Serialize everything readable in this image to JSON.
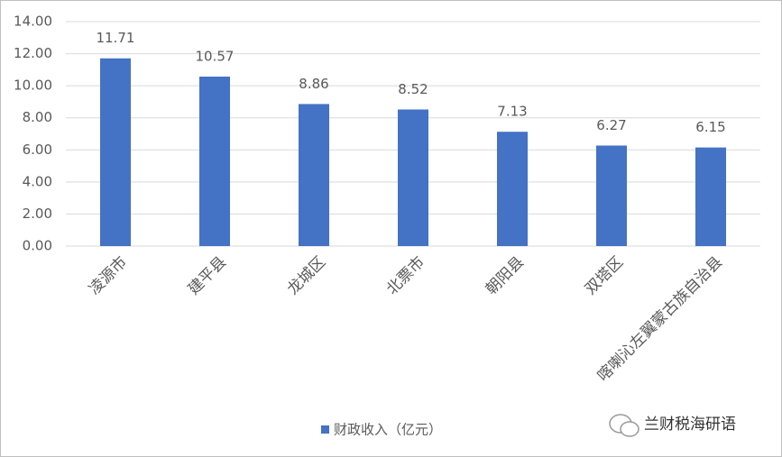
{
  "chart_data": {
    "type": "bar",
    "categories": [
      "凌源市",
      "建平县",
      "龙城区",
      "北票市",
      "朝阳县",
      "双塔区",
      "喀喇沁左翼蒙古族自治县"
    ],
    "series": [
      {
        "name": "财政收入（亿元）",
        "color": "#4472c4",
        "values": [
          11.71,
          10.57,
          8.86,
          8.52,
          7.13,
          6.27,
          6.15
        ]
      }
    ],
    "ylim": [
      0,
      14
    ],
    "yticks": [
      {
        "value": 0,
        "label": "0.00"
      },
      {
        "value": 2,
        "label": "2.00"
      },
      {
        "value": 4,
        "label": "4.00"
      },
      {
        "value": 6,
        "label": "6.00"
      },
      {
        "value": 8,
        "label": "8.00"
      },
      {
        "value": 10,
        "label": "10.00"
      },
      {
        "value": 12,
        "label": "12.00"
      },
      {
        "value": 14,
        "label": "14.00"
      }
    ],
    "grid": true,
    "legend": "bottom",
    "annotation": "兰财税海研语"
  }
}
